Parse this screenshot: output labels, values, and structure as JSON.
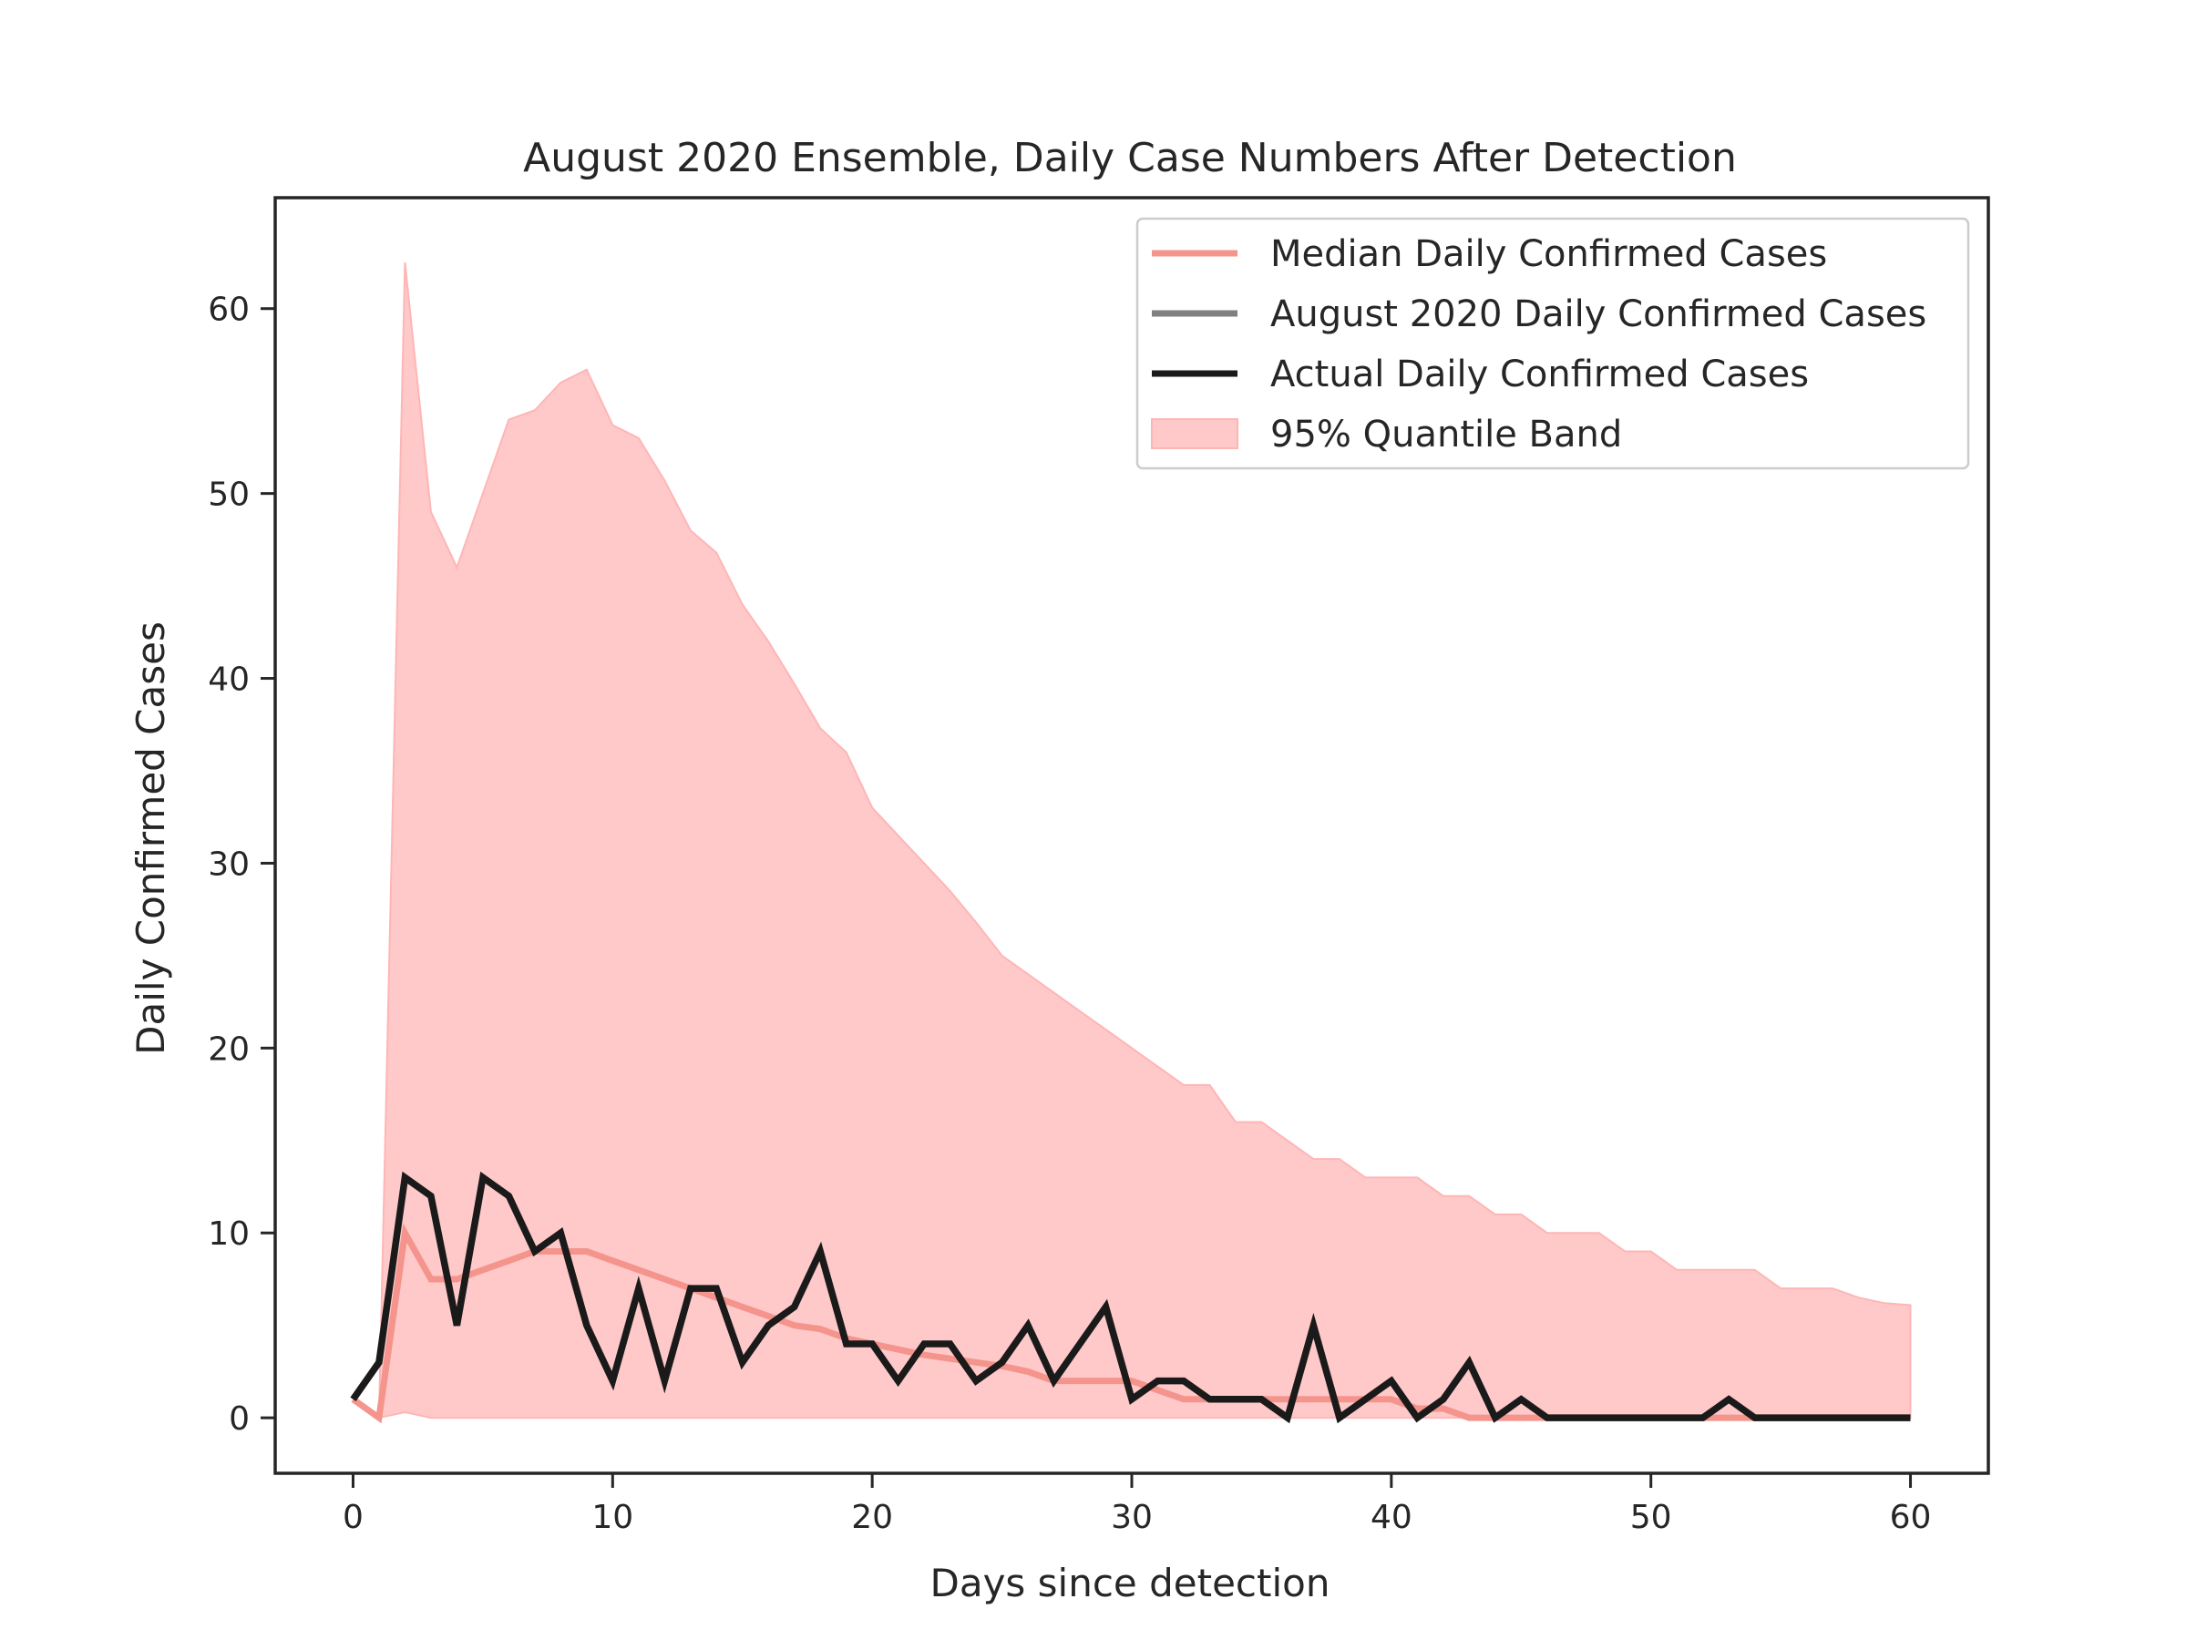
{
  "chart_data": {
    "type": "line",
    "title": "August 2020 Ensemble, Daily Case Numbers After Detection",
    "xlabel": "Days since detection",
    "ylabel": "Daily Confirmed Cases",
    "xlim": [
      -3,
      63
    ],
    "ylim": [
      -3,
      66
    ],
    "xticks": [
      0,
      10,
      20,
      30,
      40,
      50,
      60
    ],
    "yticks": [
      0,
      10,
      20,
      30,
      40,
      50,
      60
    ],
    "legend_position": "top-right",
    "legend": [
      {
        "label": "Median Daily Confirmed Cases",
        "kind": "line",
        "color": "#f4948c"
      },
      {
        "label": "August 2020 Daily Confirmed Cases",
        "kind": "line",
        "color": "#808080"
      },
      {
        "label": "Actual Daily Confirmed Cases",
        "kind": "line",
        "color": "#1a1a1a"
      },
      {
        "label": "95% Quantile Band",
        "kind": "patch",
        "color": "#ffc9c9"
      }
    ],
    "x": [
      0,
      1,
      2,
      3,
      4,
      5,
      6,
      7,
      8,
      9,
      10,
      11,
      12,
      13,
      14,
      15,
      16,
      17,
      18,
      19,
      20,
      21,
      22,
      23,
      24,
      25,
      26,
      27,
      28,
      29,
      30,
      31,
      32,
      33,
      34,
      35,
      36,
      37,
      38,
      39,
      40,
      41,
      42,
      43,
      44,
      45,
      46,
      47,
      48,
      49,
      50,
      51,
      52,
      53,
      54,
      55,
      56,
      57,
      58,
      59,
      60
    ],
    "band_upper": [
      1,
      0,
      62.5,
      49,
      46,
      50,
      54,
      54.5,
      56,
      56.7,
      53.7,
      53,
      50.7,
      48,
      46.8,
      44,
      42,
      39.7,
      37.3,
      36,
      33,
      31.5,
      30,
      28.5,
      26.8,
      25,
      24,
      23,
      22,
      21,
      20,
      19,
      18,
      18,
      16,
      16,
      15,
      14,
      14,
      13,
      13,
      13,
      12,
      12,
      11,
      11,
      10,
      10,
      10,
      9,
      9,
      8,
      8,
      8,
      8,
      7,
      7,
      7,
      6.5,
      6.2,
      6.1
    ],
    "band_lower": [
      1,
      0,
      0.3,
      0,
      0,
      0,
      0,
      0,
      0,
      0,
      0,
      0,
      0,
      0,
      0,
      0,
      0,
      0,
      0,
      0,
      0,
      0,
      0,
      0,
      0,
      0,
      0,
      0,
      0,
      0,
      0,
      0,
      0,
      0,
      0,
      0,
      0,
      0,
      0,
      0,
      0,
      0,
      0,
      0,
      0,
      0,
      0,
      0,
      0,
      0,
      0,
      0,
      0,
      0,
      0,
      0,
      0,
      0,
      0,
      0,
      0
    ],
    "series": [
      {
        "name": "Median Daily Confirmed Cases",
        "color": "#f4948c",
        "values": [
          1,
          0,
          10,
          7.5,
          7.5,
          8,
          8.5,
          9,
          9,
          9,
          8.5,
          8,
          7.5,
          7,
          6.5,
          6,
          5.5,
          5,
          4.8,
          4.3,
          4,
          3.7,
          3.4,
          3.2,
          3,
          2.8,
          2.5,
          2,
          2,
          2,
          2,
          1.5,
          1,
          1,
          1,
          1,
          1,
          1,
          1,
          1,
          1,
          0.5,
          0.5,
          0,
          0,
          0,
          0,
          0,
          0,
          0,
          0,
          0,
          0,
          0,
          0,
          0,
          0,
          0,
          0,
          0,
          0
        ]
      },
      {
        "name": "Actual Daily Confirmed Cases",
        "color": "#1a1a1a",
        "values": [
          1,
          3,
          13,
          12,
          5,
          13,
          12,
          9,
          10,
          5,
          2,
          7,
          2,
          7,
          7,
          3,
          5,
          6,
          9,
          4,
          4,
          2,
          4,
          4,
          2,
          3,
          5,
          2,
          4,
          6,
          1,
          2,
          2,
          1,
          1,
          1,
          0,
          5,
          0,
          1,
          2,
          0,
          1,
          3,
          0,
          1,
          0,
          0,
          0,
          0,
          0,
          0,
          0,
          1,
          0,
          0,
          0,
          0,
          0,
          0,
          0
        ]
      }
    ]
  }
}
